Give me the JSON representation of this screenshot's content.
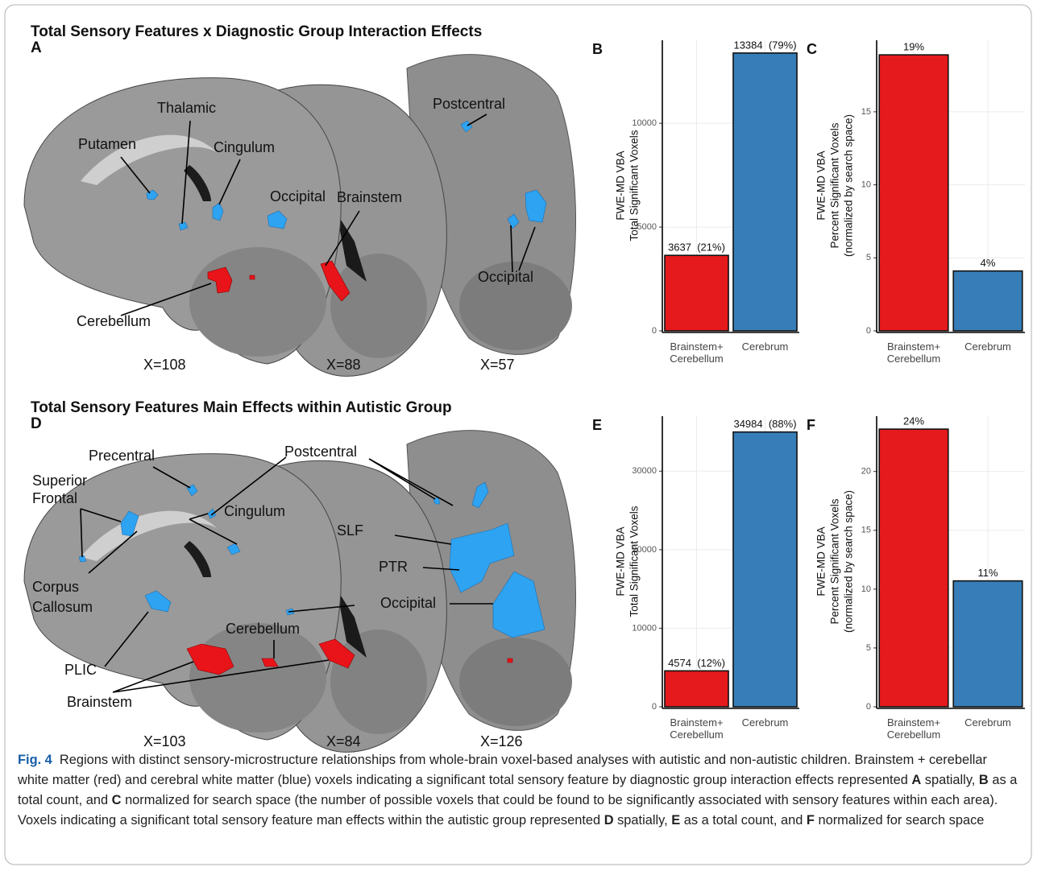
{
  "panels": {
    "a": {
      "title": "Total Sensory Features x Diagnostic Group Interaction Effects",
      "letter": "A",
      "labels": [
        "Thalamic",
        "Putamen",
        "Cingulum",
        "Occipital",
        "Brainstem",
        "Postcentral",
        "Occipital",
        "Cerebellum"
      ],
      "slices": [
        "X=108",
        "X=88",
        "X=57"
      ]
    },
    "d": {
      "title": "Total Sensory Features Main Effects within Autistic Group",
      "letter": "D",
      "labels": [
        "Precentral",
        "Postcentral",
        "Superior",
        "Frontal",
        "Cingulum",
        "SLF",
        "PTR",
        "Corpus",
        "Callosum",
        "Occipital",
        "Cerebellum",
        "PLIC",
        "Brainstem"
      ],
      "slices": [
        "X=103",
        "X=84",
        "X=126"
      ]
    }
  },
  "chart_data": [
    {
      "type": "bar",
      "title": "B",
      "ylabel": [
        "FWE-MD VBA",
        "Total Significant Voxels"
      ],
      "categories": [
        "Brainstem+ Cerebellum",
        "Cerebrum"
      ],
      "values": [
        3637,
        13384
      ],
      "value_labels": [
        "3637  (21%)",
        "13384  (79%)"
      ],
      "colors": [
        "#e41a1c",
        "#377eb8"
      ],
      "ylim": [
        0,
        14000
      ],
      "yticks": [
        0,
        5000,
        10000
      ],
      "grid": true
    },
    {
      "type": "bar",
      "title": "C",
      "ylabel": [
        "FWE-MD VBA",
        "Percent Significant Voxels",
        "(normalized by search space)"
      ],
      "categories": [
        "Brainstem+ Cerebellum",
        "Cerebrum"
      ],
      "values": [
        18.9,
        4.1
      ],
      "value_labels": [
        "19%",
        "4%"
      ],
      "colors": [
        "#e41a1c",
        "#377eb8"
      ],
      "ylim": [
        0,
        19.9
      ],
      "yticks": [
        0,
        5,
        10,
        15
      ],
      "grid": true
    },
    {
      "type": "bar",
      "title": "E",
      "ylabel": [
        "FWE-MD VBA",
        "Total Significant Voxels"
      ],
      "categories": [
        "Brainstem+ Cerebellum",
        "Cerebrum"
      ],
      "values": [
        4574,
        34984
      ],
      "value_labels": [
        "4574  (12%)",
        "34984  (88%)"
      ],
      "colors": [
        "#e41a1c",
        "#377eb8"
      ],
      "ylim": [
        0,
        37000
      ],
      "yticks": [
        0,
        10000,
        20000,
        30000
      ],
      "grid": true
    },
    {
      "type": "bar",
      "title": "F",
      "ylabel": [
        "FWE-MD VBA",
        "Percent Significant Voxels",
        "(normalized by search space)"
      ],
      "categories": [
        "Brainstem+ Cerebellum",
        "Cerebrum"
      ],
      "values": [
        23.6,
        10.7
      ],
      "value_labels": [
        "24%",
        "11%"
      ],
      "colors": [
        "#e41a1c",
        "#377eb8"
      ],
      "ylim": [
        0,
        24.7
      ],
      "yticks": [
        0,
        5,
        10,
        15,
        20
      ],
      "grid": true
    }
  ],
  "caption": {
    "label": "Fig. 4",
    "parts": [
      "Regions with distinct sensory-microstructure relationships from whole-brain voxel-based analyses with autistic and non-autistic children. Brainstem + cerebellar white matter (red) and cerebral white matter (blue) voxels indicating a significant total sensory feature by diagnostic group interaction effects represented",
      "A",
      "spatially,",
      "B",
      "as a total count, and",
      "C",
      "normalized for search space (the number of possible voxels that could be found to be significantly associated with sensory features within each area). Voxels indicating a significant total sensory feature man effects within the autistic group represented",
      "D",
      "spatially,",
      "E",
      "as a total count, and",
      "F",
      "normalized for search space"
    ]
  }
}
